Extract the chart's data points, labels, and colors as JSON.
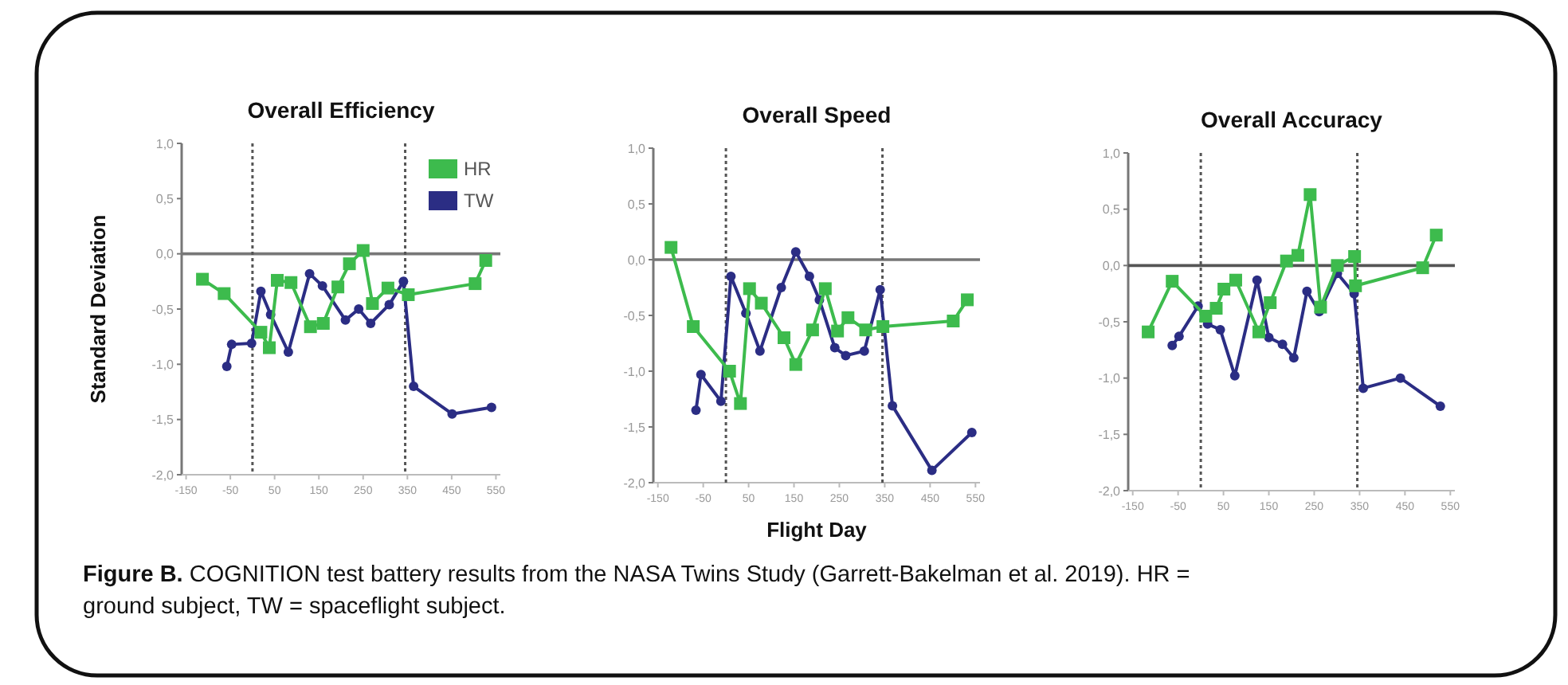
{
  "chart_data": [
    {
      "type": "line",
      "title": "Overall Efficiency",
      "ylabel": "Standard Deviation",
      "xlim": [
        -160,
        560
      ],
      "ylim": [
        -2,
        1
      ],
      "xticks": [
        -150,
        -50,
        50,
        150,
        250,
        350,
        450,
        550
      ],
      "yticks": [
        {
          "value": 1,
          "label": "1,0"
        },
        {
          "value": 0.5,
          "label": "0,5"
        },
        {
          "value": 0,
          "label": "0,0"
        },
        {
          "value": -0.5,
          "label": "-0,5"
        },
        {
          "value": -1,
          "label": "-1,0"
        },
        {
          "value": -1.5,
          "label": "-1,5"
        },
        {
          "value": -2,
          "label": "-2,0"
        }
      ],
      "legend": "top right",
      "ref_lines": [
        {
          "axis": "y",
          "value": 0,
          "color": "#777777",
          "line_style": "solid"
        },
        {
          "axis": "x",
          "value": 0,
          "color": "#555555",
          "line_style": "dotted"
        },
        {
          "axis": "x",
          "value": 345,
          "color": "#555555",
          "line_style": "dotted"
        }
      ],
      "annotations": [
        "Figure B. COGNITION test battery results from the NASA Twins Study (Garrett-Bakelman et al. 2019). HR = ground subject, TW = spaceflight subject."
      ],
      "series": [
        {
          "name": "HR",
          "color": "#3dbb4d",
          "marker": "square",
          "x": [
            -113,
            -64,
            19,
            38,
            56,
            87,
            131,
            160,
            193,
            219,
            250,
            271,
            306,
            352,
            503,
            527
          ],
          "values": [
            -0.23,
            -0.36,
            -0.71,
            -0.85,
            -0.24,
            -0.26,
            -0.66,
            -0.63,
            -0.3,
            -0.09,
            0.03,
            -0.45,
            -0.31,
            -0.37,
            -0.27,
            -0.06
          ]
        },
        {
          "name": "TW",
          "color": "#2b2d84",
          "marker": "circle",
          "x": [
            -58,
            -47,
            -2,
            19,
            41,
            81,
            129,
            158,
            210,
            240,
            267,
            309,
            341,
            364,
            451,
            540
          ],
          "values": [
            -1.02,
            -0.82,
            -0.81,
            -0.34,
            -0.55,
            -0.89,
            -0.18,
            -0.29,
            -0.6,
            -0.5,
            -0.63,
            -0.46,
            -0.25,
            -1.2,
            -1.45,
            -1.39
          ]
        }
      ]
    },
    {
      "type": "line",
      "title": "Overall Speed",
      "xlabel": "Flight Day",
      "xlim": [
        -160,
        560
      ],
      "ylim": [
        -2,
        1
      ],
      "xticks": [
        -150,
        -50,
        50,
        150,
        250,
        350,
        450,
        550
      ],
      "yticks": [
        {
          "value": 1,
          "label": "1,0"
        },
        {
          "value": 0.5,
          "label": "0,5"
        },
        {
          "value": 0,
          "label": "0,0"
        },
        {
          "value": -0.5,
          "label": "-0,5"
        },
        {
          "value": -1,
          "label": "-1,0"
        },
        {
          "value": -1.5,
          "label": "-1,5"
        },
        {
          "value": -2,
          "label": "-2,0"
        }
      ],
      "ref_lines": [
        {
          "axis": "y",
          "value": 0,
          "color": "#777777",
          "line_style": "solid"
        },
        {
          "axis": "x",
          "value": 0,
          "color": "#555555",
          "line_style": "dotted"
        },
        {
          "axis": "x",
          "value": 345,
          "color": "#555555",
          "line_style": "dotted"
        }
      ],
      "series": [
        {
          "color": "#3dbb4d",
          "marker": "square",
          "x": [
            -121,
            -72,
            8,
            32,
            52,
            78,
            128,
            154,
            191,
            219,
            246,
            269,
            308,
            346,
            501,
            532
          ],
          "values": [
            0.11,
            -0.6,
            -1.0,
            -1.29,
            -0.26,
            -0.39,
            -0.7,
            -0.94,
            -0.63,
            -0.26,
            -0.64,
            -0.52,
            -0.63,
            -0.6,
            -0.55,
            -0.36
          ]
        },
        {
          "color": "#2b2d84",
          "marker": "circle",
          "x": [
            -66,
            -55,
            -11,
            11,
            44,
            75,
            122,
            154,
            184,
            206,
            240,
            264,
            305,
            340,
            367,
            454,
            542
          ],
          "values": [
            -1.35,
            -1.03,
            -1.27,
            -0.15,
            -0.48,
            -0.82,
            -0.25,
            0.07,
            -0.15,
            -0.36,
            -0.79,
            -0.86,
            -0.82,
            -0.27,
            -1.31,
            -1.89,
            -1.55
          ]
        }
      ]
    },
    {
      "type": "line",
      "title": "Overall Accuracy",
      "xlim": [
        -160,
        560
      ],
      "ylim": [
        -2,
        1
      ],
      "xticks": [
        -150,
        -50,
        50,
        150,
        250,
        350,
        450,
        550
      ],
      "yticks": [
        {
          "value": 1,
          "label": "1,0"
        },
        {
          "value": 0.5,
          "label": "0,5"
        },
        {
          "value": 0,
          "label": "0,0"
        },
        {
          "value": -0.5,
          "label": "-0,5"
        },
        {
          "value": -1,
          "label": "-1,0"
        },
        {
          "value": -1.5,
          "label": "-1,5"
        },
        {
          "value": -2,
          "label": "-2,0"
        }
      ],
      "ref_lines": [
        {
          "axis": "y",
          "value": 0,
          "color": "#555555",
          "line_style": "solid"
        },
        {
          "axis": "x",
          "value": 0,
          "color": "#555555",
          "line_style": "dotted"
        },
        {
          "axis": "x",
          "value": 345,
          "color": "#555555",
          "line_style": "dotted"
        }
      ],
      "series": [
        {
          "color": "#3dbb4d",
          "marker": "square",
          "x": [
            -116,
            -63,
            11,
            34,
            51,
            77,
            128,
            153,
            189,
            214,
            241,
            264,
            301,
            339,
            341,
            489,
            519
          ],
          "values": [
            -0.59,
            -0.14,
            -0.45,
            -0.38,
            -0.21,
            -0.13,
            -0.59,
            -0.33,
            0.04,
            0.09,
            0.63,
            -0.37,
            0.0,
            0.08,
            -0.18,
            -0.02,
            0.27
          ]
        },
        {
          "color": "#2b2d84",
          "marker": "circle",
          "x": [
            -63,
            -48,
            -6,
            15,
            43,
            75,
            124,
            150,
            180,
            205,
            234,
            261,
            301,
            338,
            358,
            440,
            528
          ],
          "values": [
            -0.71,
            -0.63,
            -0.36,
            -0.52,
            -0.57,
            -0.98,
            -0.13,
            -0.64,
            -0.7,
            -0.82,
            -0.23,
            -0.41,
            -0.07,
            -0.25,
            -1.09,
            -1.0,
            -1.25
          ]
        }
      ]
    }
  ]
}
